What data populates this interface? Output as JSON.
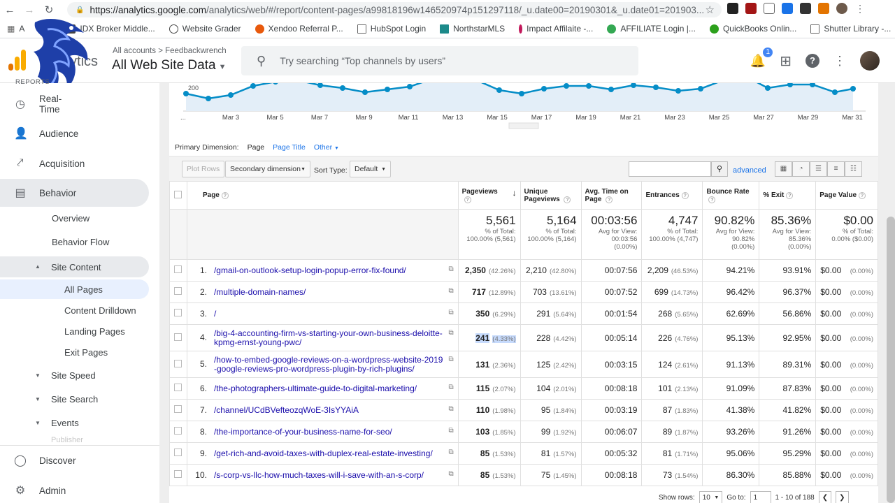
{
  "browser": {
    "url_host": "https://analytics.google.com",
    "url_path": "/analytics/web/#/report/content-pages/a99818196w146520974p151297118/_u.date00=20190301&_u.date01=201903...",
    "bookmarks": [
      "IDX Broker Middle...",
      "Website Grader",
      "Xendoo Referral P...",
      "HubSpot Login",
      "NorthstarMLS",
      "Impact Affilaite -...",
      "AFFILIATE Login |...",
      "QuickBooks Onlin...",
      "Shutter Library -..."
    ]
  },
  "header": {
    "brand": "Analytics",
    "breadcrumb": "All accounts > Feedbackwrench",
    "property": "All Web Site Data",
    "search_placeholder": "Try searching “Top channels by users”",
    "notification_count": "1"
  },
  "sidebar": {
    "reports_label": "REPORTS",
    "items": [
      {
        "label": "Real-Time",
        "icon": "clock-icon"
      },
      {
        "label": "Audience",
        "icon": "person-icon"
      },
      {
        "label": "Acquisition",
        "icon": "acquisition-icon"
      },
      {
        "label": "Behavior",
        "icon": "behavior-icon"
      }
    ],
    "behavior_sub": [
      "Overview",
      "Behavior Flow",
      "Site Content",
      "Site Speed",
      "Site Search",
      "Events",
      "Publisher"
    ],
    "site_content_sub": [
      "All Pages",
      "Content Drilldown",
      "Landing Pages",
      "Exit Pages"
    ],
    "bottom": [
      {
        "label": "Discover",
        "icon": "lightbulb-icon"
      },
      {
        "label": "Admin",
        "icon": "gear-icon"
      }
    ]
  },
  "chart": {
    "y_tick": "200",
    "x_labels": [
      "...",
      "Mar 3",
      "Mar 5",
      "Mar 7",
      "Mar 9",
      "Mar 11",
      "Mar 13",
      "Mar 15",
      "Mar 17",
      "Mar 19",
      "Mar 21",
      "Mar 23",
      "Mar 25",
      "Mar 27",
      "Mar 29",
      "Mar 31"
    ]
  },
  "controls": {
    "primary_dimension_label": "Primary Dimension:",
    "dim_page": "Page",
    "dim_page_title": "Page Title",
    "dim_other": "Other",
    "plot_rows": "Plot Rows",
    "secondary_dimension": "Secondary dimension",
    "sort_type_label": "Sort Type:",
    "sort_type_value": "Default",
    "advanced": "advanced"
  },
  "table": {
    "headers": [
      "Page",
      "Pageviews",
      "Unique Pageviews",
      "Avg. Time on Page",
      "Entrances",
      "Bounce Rate",
      "% Exit",
      "Page Value"
    ],
    "totals": [
      {
        "value": "5,561",
        "sub1": "% of Total:",
        "sub2": "100.00% (5,561)",
        "sub3": ""
      },
      {
        "value": "5,164",
        "sub1": "% of Total:",
        "sub2": "100.00% (5,164)",
        "sub3": ""
      },
      {
        "value": "00:03:56",
        "sub1": "Avg for View:",
        "sub2": "00:03:56",
        "sub3": "(0.00%)"
      },
      {
        "value": "4,747",
        "sub1": "% of Total:",
        "sub2": "100.00% (4,747)",
        "sub3": ""
      },
      {
        "value": "90.82%",
        "sub1": "Avg for View:",
        "sub2": "90.82%",
        "sub3": "(0.00%)"
      },
      {
        "value": "85.36%",
        "sub1": "Avg for View:",
        "sub2": "85.36%",
        "sub3": "(0.00%)"
      },
      {
        "value": "$0.00",
        "sub1": "% of Total:",
        "sub2": "0.00% ($0.00)",
        "sub3": ""
      }
    ],
    "rows": [
      {
        "rank": "1.",
        "page": "/gmail-on-outlook-setup-login-popup-error-fix-found/",
        "pv": "2,350",
        "pv_pct": "(42.26%)",
        "upv": "2,210",
        "upv_pct": "(42.80%)",
        "time": "00:07:56",
        "ent": "2,209",
        "ent_pct": "(46.53%)",
        "bounce": "94.21%",
        "exit": "93.91%",
        "value": "$0.00",
        "value_pct": "(0.00%)"
      },
      {
        "rank": "2.",
        "page": "/multiple-domain-names/",
        "pv": "717",
        "pv_pct": "(12.89%)",
        "upv": "703",
        "upv_pct": "(13.61%)",
        "time": "00:07:52",
        "ent": "699",
        "ent_pct": "(14.73%)",
        "bounce": "96.42%",
        "exit": "96.37%",
        "value": "$0.00",
        "value_pct": "(0.00%)"
      },
      {
        "rank": "3.",
        "page": "/",
        "pv": "350",
        "pv_pct": "(6.29%)",
        "upv": "291",
        "upv_pct": "(5.64%)",
        "time": "00:01:54",
        "ent": "268",
        "ent_pct": "(5.65%)",
        "bounce": "62.69%",
        "exit": "56.86%",
        "value": "$0.00",
        "value_pct": "(0.00%)"
      },
      {
        "rank": "4.",
        "page": "/big-4-accounting-firm-vs-starting-your-own-business-deloitte-kpmg-ernst-young-pwc/",
        "pv": "241",
        "pv_pct": "(4.33%)",
        "upv": "228",
        "upv_pct": "(4.42%)",
        "time": "00:05:14",
        "ent": "226",
        "ent_pct": "(4.76%)",
        "bounce": "95.13%",
        "exit": "92.95%",
        "value": "$0.00",
        "value_pct": "(0.00%)"
      },
      {
        "rank": "5.",
        "page": "/how-to-embed-google-reviews-on-a-wordpress-website-2019-google-reviews-pro-wordpress-plugin-by-rich-plugins/",
        "pv": "131",
        "pv_pct": "(2.36%)",
        "upv": "125",
        "upv_pct": "(2.42%)",
        "time": "00:03:15",
        "ent": "124",
        "ent_pct": "(2.61%)",
        "bounce": "91.13%",
        "exit": "89.31%",
        "value": "$0.00",
        "value_pct": "(0.00%)"
      },
      {
        "rank": "6.",
        "page": "/the-photographers-ultimate-guide-to-digital-marketing/",
        "pv": "115",
        "pv_pct": "(2.07%)",
        "upv": "104",
        "upv_pct": "(2.01%)",
        "time": "00:08:18",
        "ent": "101",
        "ent_pct": "(2.13%)",
        "bounce": "91.09%",
        "exit": "87.83%",
        "value": "$0.00",
        "value_pct": "(0.00%)"
      },
      {
        "rank": "7.",
        "page": "/channel/UCdBVefteozqWoE-3IsYYAiA",
        "pv": "110",
        "pv_pct": "(1.98%)",
        "upv": "95",
        "upv_pct": "(1.84%)",
        "time": "00:03:19",
        "ent": "87",
        "ent_pct": "(1.83%)",
        "bounce": "41.38%",
        "exit": "41.82%",
        "value": "$0.00",
        "value_pct": "(0.00%)"
      },
      {
        "rank": "8.",
        "page": "/the-importance-of-your-business-name-for-seo/",
        "pv": "103",
        "pv_pct": "(1.85%)",
        "upv": "99",
        "upv_pct": "(1.92%)",
        "time": "00:06:07",
        "ent": "89",
        "ent_pct": "(1.87%)",
        "bounce": "93.26%",
        "exit": "91.26%",
        "value": "$0.00",
        "value_pct": "(0.00%)"
      },
      {
        "rank": "9.",
        "page": "/get-rich-and-avoid-taxes-with-duplex-real-estate-investing/",
        "pv": "85",
        "pv_pct": "(1.53%)",
        "upv": "81",
        "upv_pct": "(1.57%)",
        "time": "00:05:32",
        "ent": "81",
        "ent_pct": "(1.71%)",
        "bounce": "95.06%",
        "exit": "95.29%",
        "value": "$0.00",
        "value_pct": "(0.00%)"
      },
      {
        "rank": "10.",
        "page": "/s-corp-vs-llc-how-much-taxes-will-i-save-with-an-s-corp/",
        "pv": "85",
        "pv_pct": "(1.53%)",
        "upv": "75",
        "upv_pct": "(1.45%)",
        "time": "00:08:18",
        "ent": "73",
        "ent_pct": "(1.54%)",
        "bounce": "86.30%",
        "exit": "85.88%",
        "value": "$0.00",
        "value_pct": "(0.00%)"
      }
    ]
  },
  "footer": {
    "show_rows_label": "Show rows:",
    "show_rows_value": "10",
    "goto_label": "Go to:",
    "goto_value": "1",
    "range": "1 - 10 of 188"
  }
}
